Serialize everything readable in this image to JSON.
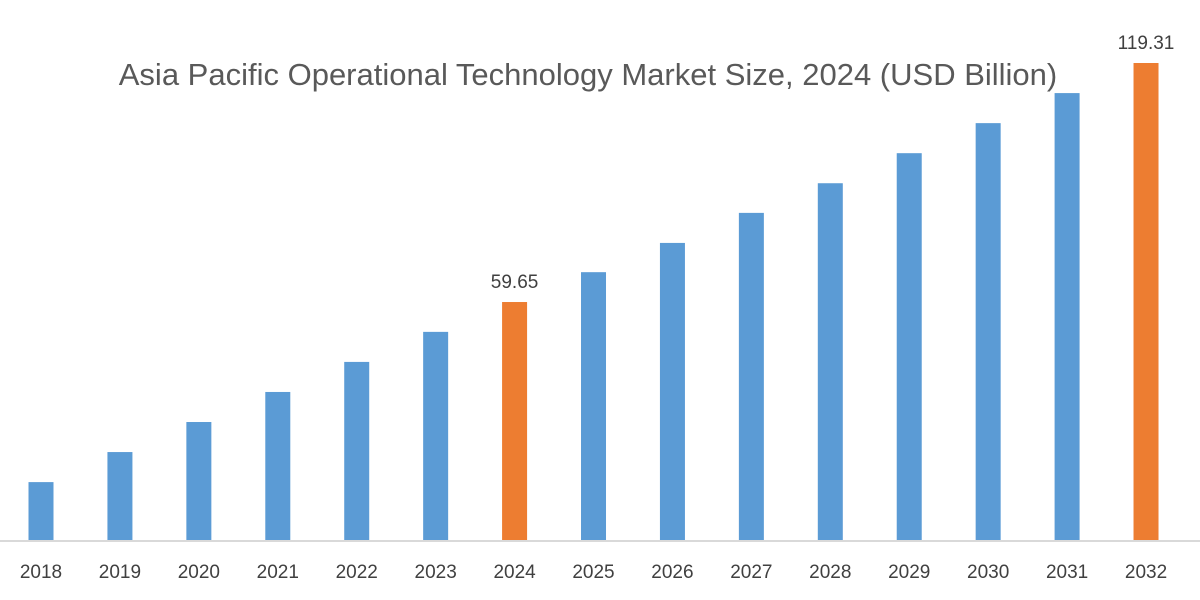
{
  "chart_data": {
    "type": "bar",
    "title": "Asia Pacific Operational Technology Market Size, 2024 (USD Billion)",
    "xlabel": "",
    "ylabel": "",
    "categories": [
      "2018",
      "2019",
      "2020",
      "2021",
      "2022",
      "2023",
      "2024",
      "2025",
      "2026",
      "2027",
      "2028",
      "2029",
      "2030",
      "2031",
      "2032"
    ],
    "values": [
      14.7,
      22.2,
      29.7,
      37.2,
      44.7,
      52.2,
      59.65,
      67.1,
      74.4,
      81.9,
      89.3,
      96.8,
      104.3,
      111.8,
      119.31
    ],
    "data_labels": {
      "2024": "59.65",
      "2032": "119.31"
    },
    "highlight_categories": [
      "2024",
      "2032"
    ],
    "ylim": [
      0,
      120
    ],
    "grid": false,
    "legend": "none",
    "colors": {
      "default": "#5B9BD5",
      "highlight": "#ED7D31",
      "axis": "#D9D9D9"
    }
  }
}
